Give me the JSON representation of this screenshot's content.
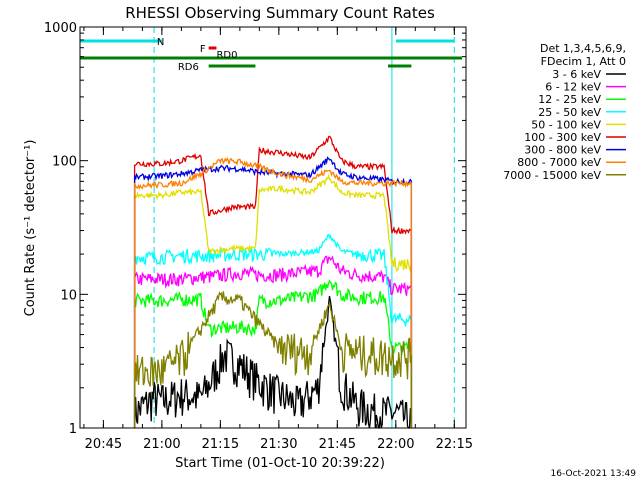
{
  "chart_data": {
    "type": "line",
    "title": "RHESSI Observing Summary Count Rates",
    "xlabel": "Start Time (01-Oct-10 20:39:22)",
    "ylabel": "Count Rate (s⁻¹ detector⁻¹)",
    "yscale": "log",
    "ylim": [
      1,
      1000
    ],
    "yticks": [
      {
        "value": 1,
        "label": "1"
      },
      {
        "value": 10,
        "label": "10"
      },
      {
        "value": 100,
        "label": "100"
      },
      {
        "value": 1000,
        "label": "1000"
      }
    ],
    "xlim": [
      "20:39",
      "22:18"
    ],
    "xticks": [
      "20:45",
      "21:00",
      "21:15",
      "21:30",
      "21:45",
      "22:00",
      "22:15"
    ],
    "timestamp": "16-Oct-2021 13:49",
    "legend": {
      "position": "right",
      "header": [
        "Det 1,3,4,5,6,9,",
        "FDecim 1, Att 0"
      ],
      "entries": [
        {
          "label": "3 - 6 keV",
          "color": "#000000"
        },
        {
          "label": "6 - 12 keV",
          "color": "#ff00ff"
        },
        {
          "label": "12 - 25 keV",
          "color": "#00ff00"
        },
        {
          "label": "25 - 50 keV",
          "color": "#00ffff"
        },
        {
          "label": "50 - 100 keV",
          "color": "#e0e000"
        },
        {
          "label": "100 - 300 keV",
          "color": "#e00000"
        },
        {
          "label": "300 - 800 keV",
          "color": "#0000e0"
        },
        {
          "label": "800 - 7000 keV",
          "color": "#ff8000"
        },
        {
          "label": "7000 - 15000 keV",
          "color": "#808000"
        }
      ]
    },
    "flags": [
      {
        "label": "N",
        "color": "#00e0e0",
        "segments": [
          [
            "20:39",
            "21:00"
          ],
          [
            "22:00",
            "22:15"
          ]
        ]
      },
      {
        "label": "F",
        "color": "#e00000",
        "segments": [
          [
            "21:12",
            "21:14"
          ]
        ]
      },
      {
        "label": "RD0",
        "color": "#008000",
        "segments": [
          [
            "20:39",
            "22:17"
          ]
        ]
      },
      {
        "label": "RD6",
        "color": "#008000",
        "segments": [
          [
            "21:12",
            "21:24"
          ],
          [
            "21:58",
            "22:04"
          ]
        ]
      }
    ],
    "markers": {
      "solid_cyan": [
        "20:39",
        "21:59"
      ],
      "dashed_cyan": [
        "20:58",
        "22:15"
      ]
    },
    "series": [
      {
        "name": "3 - 6 keV",
        "color": "#000000",
        "points": [
          [
            "20:53",
            1.3
          ],
          [
            "20:58",
            1.7
          ],
          [
            "21:00",
            1.6
          ],
          [
            "21:05",
            1.8
          ],
          [
            "21:10",
            1.7
          ],
          [
            "21:12",
            2.1
          ],
          [
            "21:16",
            3.6
          ],
          [
            "21:20",
            3.0
          ],
          [
            "21:25",
            2.2
          ],
          [
            "21:30",
            1.8
          ],
          [
            "21:35",
            1.5
          ],
          [
            "21:40",
            2.0
          ],
          [
            "21:43",
            9.0
          ],
          [
            "21:46",
            2.2
          ],
          [
            "21:50",
            1.5
          ],
          [
            "21:56",
            1.3
          ],
          [
            "22:00",
            1.3
          ],
          [
            "22:04",
            1.1
          ]
        ]
      },
      {
        "name": "6 - 12 keV",
        "color": "#ff00ff",
        "points": [
          [
            "20:53",
            13
          ],
          [
            "21:00",
            13
          ],
          [
            "21:05",
            13
          ],
          [
            "21:10",
            13.5
          ],
          [
            "21:12",
            13.5
          ],
          [
            "21:20",
            14.5
          ],
          [
            "21:25",
            14
          ],
          [
            "21:30",
            14
          ],
          [
            "21:40",
            15
          ],
          [
            "21:43",
            19
          ],
          [
            "21:46",
            15
          ],
          [
            "21:50",
            14
          ],
          [
            "21:57",
            13.5
          ],
          [
            "21:59",
            11
          ],
          [
            "22:04",
            11
          ]
        ]
      },
      {
        "name": "12 - 25 keV",
        "color": "#00ff00",
        "points": [
          [
            "20:53",
            9
          ],
          [
            "21:00",
            9
          ],
          [
            "21:05",
            9.2
          ],
          [
            "21:10",
            9.2
          ],
          [
            "21:12",
            5.5
          ],
          [
            "21:20",
            5.7
          ],
          [
            "21:24",
            5.5
          ],
          [
            "21:25",
            9
          ],
          [
            "21:30",
            9
          ],
          [
            "21:40",
            10
          ],
          [
            "21:43",
            13
          ],
          [
            "21:46",
            10
          ],
          [
            "21:50",
            9.5
          ],
          [
            "21:57",
            9.5
          ],
          [
            "21:59",
            4
          ],
          [
            "22:04",
            4
          ]
        ]
      },
      {
        "name": "25 - 50 keV",
        "color": "#00ffff",
        "points": [
          [
            "20:53",
            19
          ],
          [
            "21:00",
            19
          ],
          [
            "21:05",
            19.5
          ],
          [
            "21:10",
            19.5
          ],
          [
            "21:12",
            19.5
          ],
          [
            "21:20",
            20
          ],
          [
            "21:25",
            20
          ],
          [
            "21:30",
            20
          ],
          [
            "21:40",
            21
          ],
          [
            "21:43",
            28
          ],
          [
            "21:46",
            21
          ],
          [
            "21:50",
            20
          ],
          [
            "21:57",
            19.5
          ],
          [
            "21:59",
            6.5
          ],
          [
            "22:04",
            6.5
          ]
        ]
      },
      {
        "name": "50 - 100 keV",
        "color": "#e0e000",
        "points": [
          [
            "20:53",
            55
          ],
          [
            "21:00",
            55
          ],
          [
            "21:05",
            58
          ],
          [
            "21:10",
            58
          ],
          [
            "21:12",
            21
          ],
          [
            "21:18",
            22
          ],
          [
            "21:24",
            22
          ],
          [
            "21:25",
            60
          ],
          [
            "21:30",
            62
          ],
          [
            "21:38",
            58
          ],
          [
            "21:43",
            75
          ],
          [
            "21:46",
            58
          ],
          [
            "21:50",
            55
          ],
          [
            "21:57",
            55
          ],
          [
            "21:59",
            17
          ],
          [
            "22:04",
            17
          ]
        ]
      },
      {
        "name": "100 - 300 keV",
        "color": "#e00000",
        "points": [
          [
            "20:53",
            95
          ],
          [
            "21:00",
            95
          ],
          [
            "21:05",
            100
          ],
          [
            "21:10",
            110
          ],
          [
            "21:12",
            40
          ],
          [
            "21:18",
            45
          ],
          [
            "21:24",
            45
          ],
          [
            "21:25",
            120
          ],
          [
            "21:30",
            115
          ],
          [
            "21:38",
            105
          ],
          [
            "21:43",
            150
          ],
          [
            "21:46",
            100
          ],
          [
            "21:50",
            90
          ],
          [
            "21:57",
            90
          ],
          [
            "21:59",
            30
          ],
          [
            "22:04",
            30
          ]
        ]
      },
      {
        "name": "300 - 800 keV",
        "color": "#0000e0",
        "points": [
          [
            "20:53",
            75
          ],
          [
            "21:00",
            77
          ],
          [
            "21:05",
            80
          ],
          [
            "21:10",
            85
          ],
          [
            "21:15",
            88
          ],
          [
            "21:20",
            87
          ],
          [
            "21:25",
            82
          ],
          [
            "21:30",
            80
          ],
          [
            "21:38",
            78
          ],
          [
            "21:43",
            105
          ],
          [
            "21:46",
            80
          ],
          [
            "21:50",
            75
          ],
          [
            "21:57",
            72
          ],
          [
            "21:59",
            70
          ],
          [
            "22:04",
            70
          ]
        ]
      },
      {
        "name": "800 - 7000 keV",
        "color": "#ff8000",
        "points": [
          [
            "20:53",
            65
          ],
          [
            "21:00",
            66
          ],
          [
            "21:05",
            68
          ],
          [
            "21:10",
            80
          ],
          [
            "21:15",
            100
          ],
          [
            "21:20",
            98
          ],
          [
            "21:25",
            90
          ],
          [
            "21:30",
            80
          ],
          [
            "21:38",
            72
          ],
          [
            "21:43",
            85
          ],
          [
            "21:46",
            70
          ],
          [
            "21:50",
            68
          ],
          [
            "21:57",
            68
          ],
          [
            "21:59",
            68
          ],
          [
            "22:04",
            68
          ]
        ]
      },
      {
        "name": "7000 - 15000 keV",
        "color": "#808000",
        "points": [
          [
            "20:53",
            2.6
          ],
          [
            "21:00",
            2.7
          ],
          [
            "21:05",
            3.3
          ],
          [
            "21:10",
            5.5
          ],
          [
            "21:15",
            9.5
          ],
          [
            "21:20",
            9.0
          ],
          [
            "21:25",
            6.0
          ],
          [
            "21:30",
            4.0
          ],
          [
            "21:38",
            3.8
          ],
          [
            "21:43",
            8.5
          ],
          [
            "21:46",
            4.0
          ],
          [
            "21:50",
            3.7
          ],
          [
            "21:57",
            3.5
          ],
          [
            "21:59",
            3.5
          ],
          [
            "22:04",
            3.5
          ]
        ]
      }
    ]
  }
}
